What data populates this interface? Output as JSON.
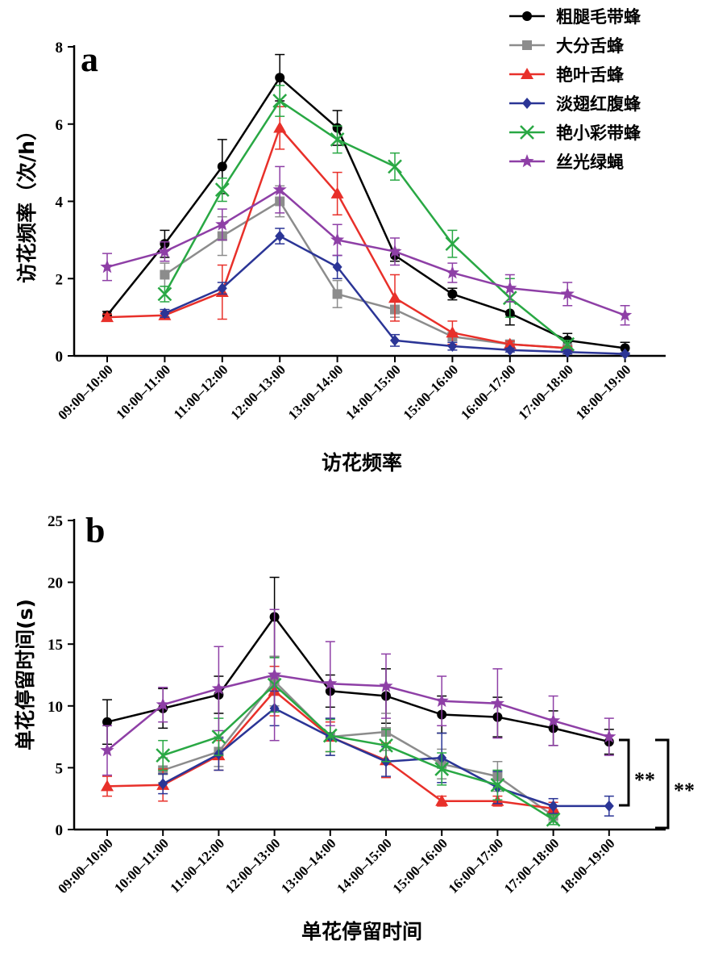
{
  "figure": {
    "legend": {
      "entries": [
        {
          "label": "粗腿毛带蜂",
          "color": "#000000",
          "marker": "circle"
        },
        {
          "label": "大分舌蜂",
          "color": "#8c8c8c",
          "marker": "square"
        },
        {
          "label": "艳叶舌蜂",
          "color": "#e8302a",
          "marker": "triangle"
        },
        {
          "label": "淡翅红腹蜂",
          "color": "#2b3596",
          "marker": "diamond"
        },
        {
          "label": "艳小彩带蜂",
          "color": "#29a844",
          "marker": "x"
        },
        {
          "label": "丝光绿蝇",
          "color": "#8e3fa6",
          "marker": "star"
        }
      ]
    },
    "significance": {
      "inner": "**",
      "outer": "**"
    }
  },
  "chart_data": [
    {
      "type": "line",
      "panel_label": "a",
      "title": "",
      "xlabel": "访花频率",
      "ylabel": "访花频率（次/h）",
      "ylim": [
        0,
        8
      ],
      "yticks": [
        0,
        2,
        4,
        6,
        8
      ],
      "categories": [
        "09:00–10:00",
        "10:00–11:00",
        "11:00–12:00",
        "12:00–13:00",
        "13:00–14:00",
        "14:00–15:00",
        "15:00–16:00",
        "16:00–17:00",
        "17:00–18:00",
        "18:00–19:00"
      ],
      "series": [
        {
          "name": "粗腿毛带蜂",
          "color": "#000000",
          "marker": "circle",
          "values": [
            1.05,
            2.9,
            4.9,
            7.2,
            5.9,
            2.6,
            1.6,
            1.1,
            0.4,
            0.2
          ],
          "errors": [
            0.1,
            0.35,
            0.7,
            0.6,
            0.45,
            0.15,
            0.15,
            0.3,
            0.18,
            0.15
          ]
        },
        {
          "name": "大分舌蜂",
          "color": "#8c8c8c",
          "marker": "square",
          "values": [
            null,
            2.1,
            3.1,
            4.0,
            1.6,
            1.2,
            0.5,
            0.3,
            0.2,
            null
          ],
          "errors": [
            null,
            0.3,
            0.5,
            0.4,
            0.35,
            0.2,
            0.1,
            0.08,
            0.05,
            null
          ]
        },
        {
          "name": "艳叶舌蜂",
          "color": "#e8302a",
          "marker": "triangle",
          "values": [
            1.0,
            1.05,
            1.65,
            5.9,
            4.2,
            1.5,
            0.6,
            0.3,
            0.2,
            null
          ],
          "errors": [
            0.08,
            0.1,
            0.7,
            0.55,
            0.55,
            0.6,
            0.3,
            0.08,
            0.05,
            null
          ]
        },
        {
          "name": "淡翅红腹蜂",
          "color": "#2b3596",
          "marker": "diamond",
          "values": [
            null,
            1.1,
            1.75,
            3.1,
            2.3,
            0.4,
            0.25,
            0.15,
            0.1,
            0.05
          ],
          "errors": [
            null,
            0.1,
            0.15,
            0.2,
            0.3,
            0.15,
            0.1,
            0.05,
            0.05,
            0.03
          ]
        },
        {
          "name": "艳小彩带蜂",
          "color": "#29a844",
          "marker": "x",
          "values": [
            null,
            1.6,
            4.3,
            6.6,
            5.6,
            4.9,
            2.9,
            1.5,
            0.3,
            null
          ],
          "errors": [
            null,
            0.2,
            0.3,
            0.4,
            0.35,
            0.35,
            0.35,
            0.5,
            0.1,
            null
          ]
        },
        {
          "name": "丝光绿蝇",
          "color": "#8e3fa6",
          "marker": "star",
          "values": [
            2.3,
            2.7,
            3.4,
            4.3,
            3.0,
            2.7,
            2.15,
            1.75,
            1.6,
            1.05
          ],
          "errors": [
            0.35,
            0.25,
            0.4,
            0.6,
            0.4,
            0.35,
            0.25,
            0.35,
            0.3,
            0.25
          ]
        }
      ]
    },
    {
      "type": "line",
      "panel_label": "b",
      "title": "",
      "xlabel": "单花停留时间",
      "ylabel": "单花停留时间(s)",
      "ylim": [
        0,
        25
      ],
      "yticks": [
        0,
        5,
        10,
        15,
        20,
        25
      ],
      "categories": [
        "09:00–10:00",
        "10:00–11:00",
        "11:00–12:00",
        "12:00–13:00",
        "13:00–14:00",
        "14:00–15:00",
        "15:00–16:00",
        "16:00–17:00",
        "17:00–18:00",
        "18:00–19:00"
      ],
      "series": [
        {
          "name": "粗腿毛带蜂",
          "color": "#000000",
          "marker": "circle",
          "values": [
            8.7,
            9.8,
            10.9,
            17.2,
            11.2,
            10.8,
            9.3,
            9.1,
            8.2,
            7.1
          ],
          "errors": [
            1.8,
            1.6,
            1.5,
            3.2,
            1.3,
            2.2,
            1.5,
            1.6,
            1.4,
            1.0
          ]
        },
        {
          "name": "大分舌蜂",
          "color": "#8c8c8c",
          "marker": "square",
          "values": [
            null,
            4.8,
            6.3,
            12.0,
            7.5,
            7.9,
            5.3,
            4.3,
            1.1,
            null
          ],
          "errors": [
            null,
            1.0,
            1.2,
            2.0,
            1.5,
            1.5,
            1.2,
            1.2,
            0.5,
            null
          ]
        },
        {
          "name": "艳叶舌蜂",
          "color": "#e8302a",
          "marker": "triangle",
          "values": [
            3.5,
            3.6,
            6.0,
            11.2,
            7.5,
            5.6,
            2.3,
            2.3,
            1.7,
            null
          ],
          "errors": [
            0.8,
            1.3,
            1.2,
            2.0,
            1.2,
            1.4,
            0.4,
            0.4,
            0.5,
            null
          ]
        },
        {
          "name": "淡翅红腹蜂",
          "color": "#2b3596",
          "marker": "diamond",
          "values": [
            null,
            3.7,
            6.1,
            9.8,
            7.5,
            5.5,
            5.8,
            3.4,
            1.9,
            1.9
          ],
          "errors": [
            null,
            0.8,
            1.3,
            1.4,
            1.5,
            1.2,
            2.0,
            1.3,
            0.6,
            0.8
          ]
        },
        {
          "name": "艳小彩带蜂",
          "color": "#29a844",
          "marker": "x",
          "values": [
            null,
            6.0,
            7.5,
            11.7,
            7.6,
            6.8,
            4.9,
            3.6,
            0.8,
            null
          ],
          "errors": [
            null,
            1.2,
            1.5,
            2.2,
            1.3,
            1.3,
            1.3,
            1.2,
            0.4,
            null
          ]
        },
        {
          "name": "丝光绿蝇",
          "color": "#8e3fa6",
          "marker": "star",
          "values": [
            6.4,
            10.1,
            11.4,
            12.5,
            11.8,
            11.6,
            10.4,
            10.2,
            8.8,
            7.5
          ],
          "errors": [
            2.0,
            1.4,
            3.4,
            5.3,
            3.4,
            2.6,
            2.0,
            2.8,
            2.0,
            1.5
          ]
        }
      ]
    }
  ]
}
